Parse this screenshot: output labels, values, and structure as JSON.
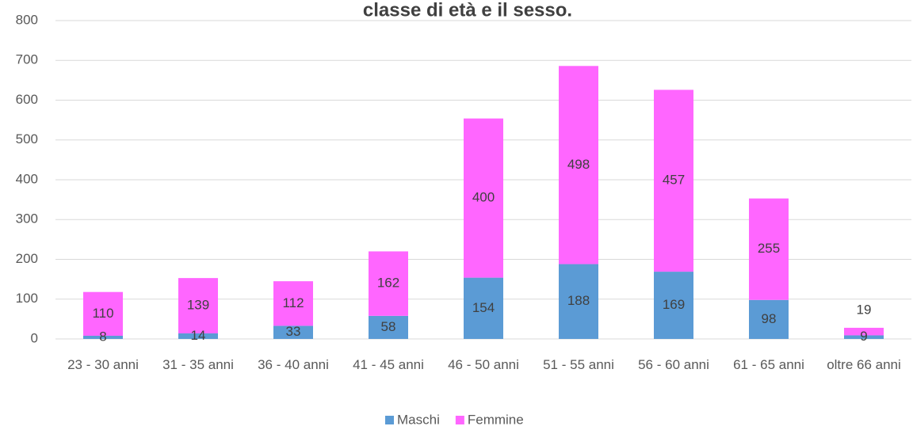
{
  "chart_data": {
    "type": "stacked_bar",
    "title": "classe di età e il sesso.",
    "categories": [
      "23 - 30 anni",
      "31 - 35 anni",
      "36 - 40 anni",
      "41 - 45 anni",
      "46 - 50 anni",
      "51 - 55 anni",
      "56 - 60 anni",
      "61 - 65 anni",
      "oltre 66 anni"
    ],
    "series": [
      {
        "name": "Maschi",
        "color": "#5b9bd5",
        "values": [
          8,
          14,
          33,
          58,
          154,
          188,
          169,
          98,
          9
        ]
      },
      {
        "name": "Femmine",
        "color": "#ff66ff",
        "values": [
          110,
          139,
          112,
          162,
          400,
          498,
          457,
          255,
          19
        ]
      }
    ],
    "ylim": [
      0,
      800
    ],
    "yticks": [
      0,
      100,
      200,
      300,
      400,
      500,
      600,
      700,
      800
    ],
    "grid": true,
    "legend": "bottom"
  }
}
